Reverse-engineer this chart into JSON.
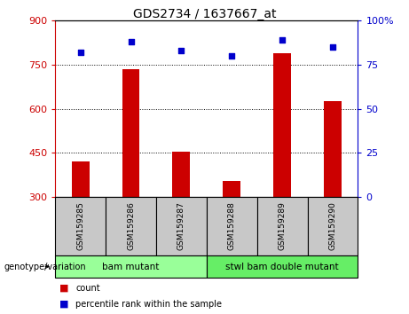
{
  "title": "GDS2734 / 1637667_at",
  "samples": [
    "GSM159285",
    "GSM159286",
    "GSM159287",
    "GSM159288",
    "GSM159289",
    "GSM159290"
  ],
  "counts": [
    420,
    735,
    455,
    355,
    790,
    625
  ],
  "percentiles": [
    82,
    88,
    83,
    80,
    89,
    85
  ],
  "ylim_left": [
    300,
    900
  ],
  "ylim_right": [
    0,
    100
  ],
  "yticks_left": [
    300,
    450,
    600,
    750,
    900
  ],
  "yticks_right": [
    0,
    25,
    50,
    75,
    100
  ],
  "bar_color": "#cc0000",
  "dot_color": "#0000cc",
  "bar_width": 0.35,
  "groups": [
    {
      "label": "bam mutant",
      "indices": [
        0,
        1,
        2
      ],
      "color": "#99ff99"
    },
    {
      "label": "stwl bam double mutant",
      "indices": [
        3,
        4,
        5
      ],
      "color": "#66ee66"
    }
  ],
  "group_label": "genotype/variation",
  "legend_count": "count",
  "legend_percentile": "percentile rank within the sample",
  "tick_area_color": "#c8c8c8",
  "plot_bg_color": "#ffffff"
}
